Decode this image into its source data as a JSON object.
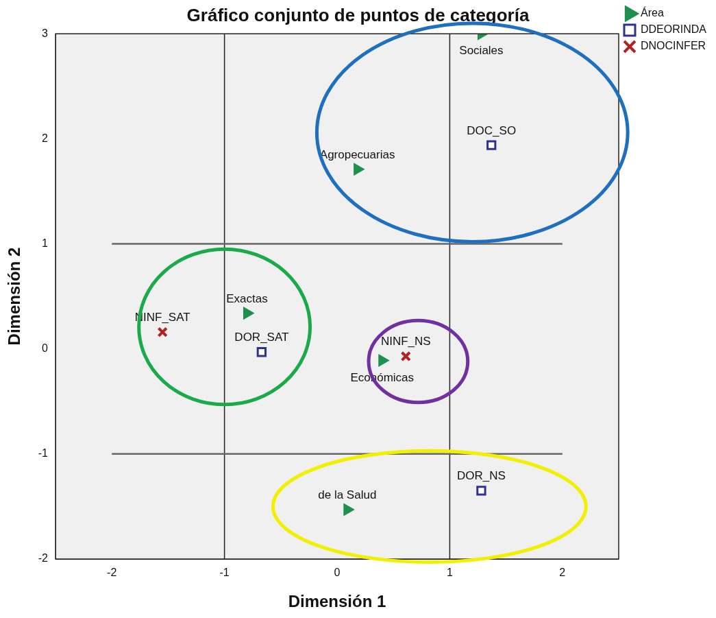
{
  "chart_data": {
    "type": "scatter",
    "title": "Gráfico conjunto de puntos de categoría",
    "xlabel": "Dimensión 1",
    "ylabel": "Dimensión 2",
    "xlim": [
      -2.5,
      2.5
    ],
    "xticks": [
      -2,
      -1,
      0,
      1,
      2
    ],
    "ylim": [
      -2,
      3
    ],
    "yticks": [
      -2,
      -1,
      0,
      1,
      2,
      3
    ],
    "grid": false,
    "legend": "top right",
    "series": [
      {
        "name": "Área",
        "type": "scatter",
        "marker": "triangle",
        "color": "#1f8f4e",
        "x": [
          1.28,
          0.18,
          -0.8,
          0.4,
          0.09
        ],
        "values": [
          3.0,
          1.71,
          0.34,
          -0.11,
          -1.53
        ]
      },
      {
        "name": "DDEORINDA",
        "type": "scatter",
        "marker": "square",
        "color": "#2e3192",
        "x": [
          1.37,
          -0.67,
          1.28
        ],
        "values": [
          1.94,
          -0.03,
          -1.35
        ]
      },
      {
        "name": "DNOCINFER",
        "type": "scatter",
        "marker": "cross",
        "color": "#b22222",
        "x": [
          -1.55,
          0.61
        ],
        "values": [
          0.16,
          -0.07
        ]
      }
    ],
    "ref_lines": [
      {
        "axis": "x",
        "value": -1
      },
      {
        "axis": "x",
        "value": 1
      },
      {
        "axis": "y",
        "value": 1
      },
      {
        "axis": "y",
        "value": -1
      }
    ],
    "annotations": [
      {
        "text": "Sociales",
        "x": 1.28,
        "y": 3.0
      },
      {
        "text": "Agropecuarias",
        "x": 0.18,
        "y": 1.71
      },
      {
        "text": "Exactas",
        "x": -0.8,
        "y": 0.34
      },
      {
        "text": "NINF_NS",
        "x": 0.61,
        "y": -0.07
      },
      {
        "text": "Económicas",
        "x": 0.4,
        "y": -0.11
      },
      {
        "text": "de la Salud",
        "x": 0.09,
        "y": -1.53
      },
      {
        "text": "DOC_SO",
        "x": 1.37,
        "y": 1.94
      },
      {
        "text": "DOR_SAT",
        "x": -0.67,
        "y": -0.03
      },
      {
        "text": "DOR_NS",
        "x": 1.28,
        "y": -1.35
      },
      {
        "text": "NINF_SAT",
        "x": -1.55,
        "y": 0.16
      }
    ]
  }
}
